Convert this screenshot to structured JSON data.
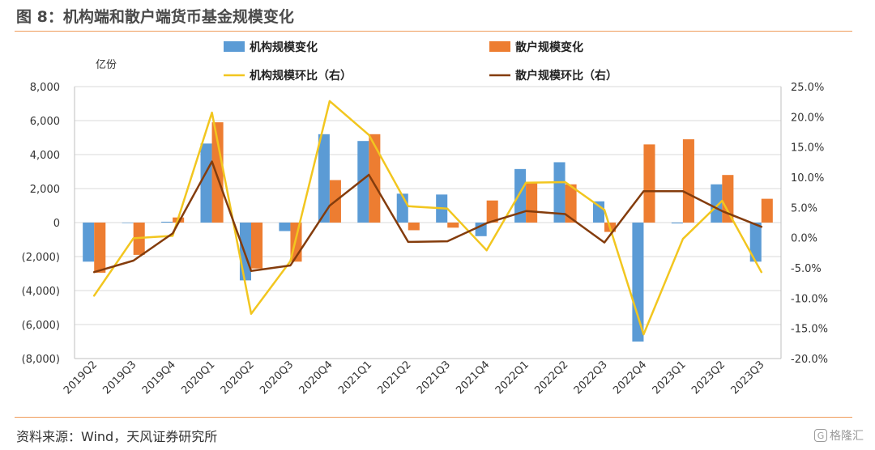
{
  "title": "图 8：机构端和散户端货币基金规模变化",
  "source": "资料来源：Wind，天风证券研究所",
  "watermark": "格隆汇",
  "chart_data": {
    "type": "bar",
    "unit_label": "亿份",
    "categories": [
      "2019Q2",
      "2019Q3",
      "2019Q4",
      "2020Q1",
      "2020Q2",
      "2020Q3",
      "2020Q4",
      "2021Q1",
      "2021Q2",
      "2021Q3",
      "2021Q4",
      "2022Q1",
      "2022Q2",
      "2022Q3",
      "2022Q4",
      "2023Q1",
      "2023Q2",
      "2023Q3"
    ],
    "series": [
      {
        "name": "机构规模变化",
        "type": "bar",
        "axis": "left",
        "color": "#5b9bd5",
        "values": [
          -2300,
          0,
          50,
          4650,
          -3400,
          -500,
          5200,
          4800,
          1700,
          1650,
          -800,
          3150,
          3550,
          1250,
          -7000,
          -50,
          2250,
          -2300
        ]
      },
      {
        "name": "散户规模变化",
        "type": "bar",
        "axis": "left",
        "color": "#ed7d31",
        "values": [
          -2950,
          -1900,
          300,
          5900,
          -2700,
          -2300,
          2500,
          5200,
          -450,
          -300,
          1300,
          2400,
          2250,
          -550,
          4600,
          4900,
          2800,
          1400
        ]
      },
      {
        "name": "机构规模环比（右）",
        "type": "line",
        "axis": "right",
        "color": "#f2c61f",
        "values": [
          -9.6,
          -0.1,
          0.3,
          20.7,
          -12.6,
          -3.9,
          22.6,
          17.0,
          5.2,
          4.8,
          -2.1,
          9.1,
          9.2,
          4.6,
          -16.0,
          -0.2,
          6.1,
          -5.7
        ]
      },
      {
        "name": "散户规模环比（右）",
        "type": "line",
        "axis": "right",
        "color": "#843c0c",
        "values": [
          -5.7,
          -3.8,
          0.7,
          12.6,
          -5.5,
          -4.6,
          5.3,
          10.4,
          -0.7,
          -0.6,
          2.4,
          4.4,
          3.9,
          -0.8,
          7.7,
          7.7,
          4.4,
          1.8
        ]
      }
    ],
    "left_axis": {
      "ylim": [
        -8000,
        8000
      ],
      "ticks": [
        8000,
        6000,
        4000,
        2000,
        0,
        -2000,
        -4000,
        -6000,
        -8000
      ],
      "tick_labels": [
        "8,000",
        "6,000",
        "4,000",
        "2,000",
        "0",
        "(2,000)",
        "(4,000)",
        "(6,000)",
        "(8,000)"
      ]
    },
    "right_axis": {
      "ylim": [
        -20,
        25
      ],
      "ticks": [
        25,
        20,
        15,
        10,
        5,
        0,
        -5,
        -10,
        -15,
        -20
      ],
      "tick_labels": [
        "25.0%",
        "20.0%",
        "15.0%",
        "10.0%",
        "5.0%",
        "0.0%",
        "-5.0%",
        "-10.0%",
        "-15.0%",
        "-20.0%"
      ]
    },
    "grid": true,
    "legend_position": "top"
  }
}
